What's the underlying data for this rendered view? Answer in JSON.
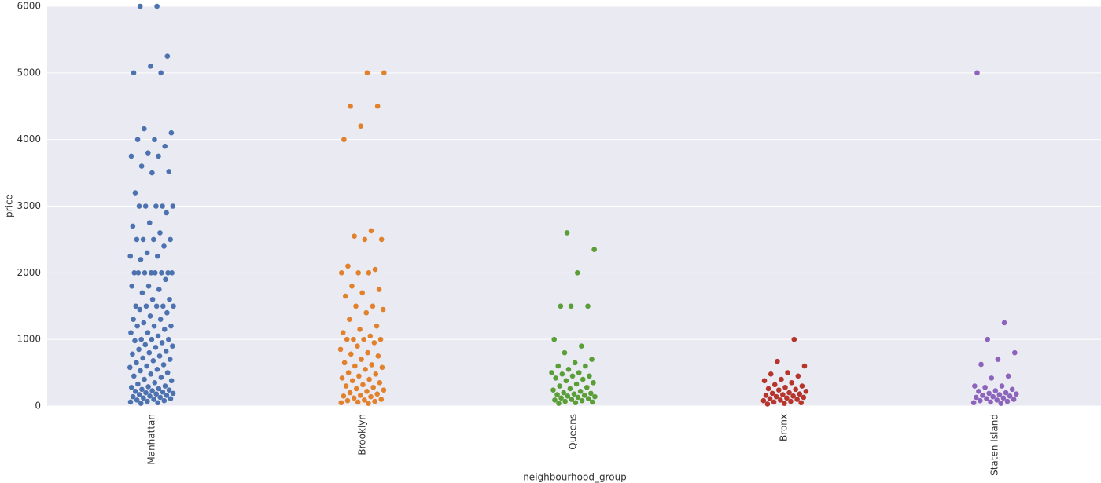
{
  "chart_data": {
    "type": "strip",
    "x_label": "neighbourhood_group",
    "y_label": "price",
    "categories": [
      "Manhattan",
      "Brooklyn",
      "Queens",
      "Bronx",
      "Staten Island"
    ],
    "colors": [
      "#4c72b0",
      "#e1812c",
      "#5a9e37",
      "#b5342c",
      "#8c64bc"
    ],
    "values": [
      [
        6000,
        6000,
        5250,
        5100,
        5000,
        5000,
        4160,
        4100,
        4000,
        4000,
        3900,
        3800,
        3750,
        3750,
        3600,
        3520,
        3500,
        3200,
        3000,
        3000,
        3000,
        3000,
        3000,
        2900,
        2750,
        2700,
        2600,
        2500,
        2500,
        2500,
        2500,
        2400,
        2300,
        2250,
        2250,
        2200,
        2000,
        2000,
        2000,
        2000,
        2000,
        2000,
        2000,
        2000,
        1900,
        1800,
        1800,
        1750,
        1700,
        1600,
        1600,
        1500,
        1500,
        1500,
        1500,
        1500,
        1450,
        1400,
        1350,
        1300,
        1300,
        1250,
        1200,
        1200,
        1200,
        1150,
        1100,
        1100,
        1050,
        1000,
        1000,
        1000,
        980,
        950,
        920,
        900,
        880,
        850,
        820,
        800,
        780,
        750,
        720,
        700,
        680,
        650,
        620,
        600,
        580,
        550,
        530,
        500,
        480,
        450,
        430,
        400,
        380,
        350,
        330,
        300,
        290,
        280,
        260,
        250,
        240,
        230,
        220,
        210,
        200,
        190,
        180,
        170,
        160,
        150,
        140,
        130,
        120,
        110,
        100,
        90,
        80,
        70,
        60,
        50,
        40
      ],
      [
        5000,
        5000,
        4500,
        4500,
        4200,
        4000,
        2630,
        2550,
        2500,
        2500,
        2100,
        2050,
        2000,
        2000,
        2000,
        1800,
        1750,
        1700,
        1650,
        1500,
        1500,
        1450,
        1400,
        1300,
        1200,
        1150,
        1100,
        1050,
        1000,
        1000,
        1000,
        1000,
        950,
        900,
        850,
        800,
        780,
        750,
        700,
        650,
        620,
        600,
        580,
        550,
        500,
        480,
        450,
        420,
        400,
        380,
        350,
        320,
        300,
        280,
        260,
        240,
        220,
        200,
        180,
        160,
        150,
        140,
        120,
        100,
        90,
        80,
        70,
        60,
        50,
        40
      ],
      [
        2600,
        2350,
        2000,
        1500,
        1500,
        1500,
        1000,
        900,
        800,
        700,
        650,
        600,
        600,
        550,
        500,
        500,
        480,
        450,
        450,
        420,
        400,
        380,
        350,
        330,
        300,
        280,
        260,
        240,
        220,
        200,
        190,
        180,
        170,
        160,
        150,
        140,
        130,
        120,
        110,
        100,
        90,
        80,
        70,
        60,
        50,
        40
      ],
      [
        1000,
        670,
        600,
        500,
        480,
        450,
        400,
        380,
        350,
        320,
        300,
        280,
        260,
        250,
        240,
        220,
        200,
        190,
        180,
        170,
        160,
        150,
        140,
        130,
        120,
        110,
        100,
        90,
        80,
        70,
        60,
        50,
        40,
        30
      ],
      [
        5000,
        1250,
        1000,
        800,
        700,
        625,
        450,
        420,
        300,
        300,
        280,
        250,
        230,
        220,
        200,
        190,
        180,
        170,
        160,
        150,
        140,
        130,
        120,
        110,
        100,
        90,
        80,
        70,
        60,
        50,
        40
      ]
    ],
    "ylim": [
      0,
      6000
    ],
    "yticks": [
      0,
      1000,
      2000,
      3000,
      4000,
      5000,
      6000
    ],
    "grid": true
  }
}
